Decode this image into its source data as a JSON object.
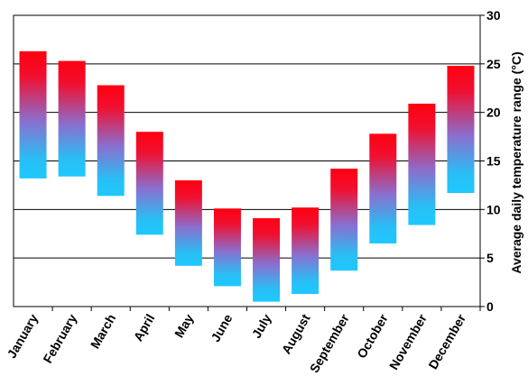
{
  "chart_data": {
    "type": "bar",
    "title": "",
    "xlabel": "",
    "ylabel": "Average daily temperature range (°C)",
    "y_axis_position": "right",
    "ylim": [
      0,
      30
    ],
    "yticks": [
      0,
      5,
      10,
      15,
      20,
      25,
      30
    ],
    "grid": "horizontal",
    "categories": [
      "January",
      "February",
      "March",
      "April",
      "May",
      "June",
      "July",
      "August",
      "September",
      "October",
      "November",
      "December"
    ],
    "series": [
      {
        "low": [
          13.2,
          13.4,
          11.4,
          7.4,
          4.2,
          2.1,
          0.5,
          1.3,
          3.7,
          6.5,
          8.4,
          11.7
        ],
        "high": [
          26.3,
          25.3,
          22.8,
          18.0,
          13.0,
          10.1,
          9.1,
          10.2,
          14.2,
          17.8,
          20.9,
          24.8
        ]
      }
    ],
    "colors": {
      "low": "#1ec8ff",
      "high": "#ff0010",
      "grid": "#000000"
    }
  }
}
